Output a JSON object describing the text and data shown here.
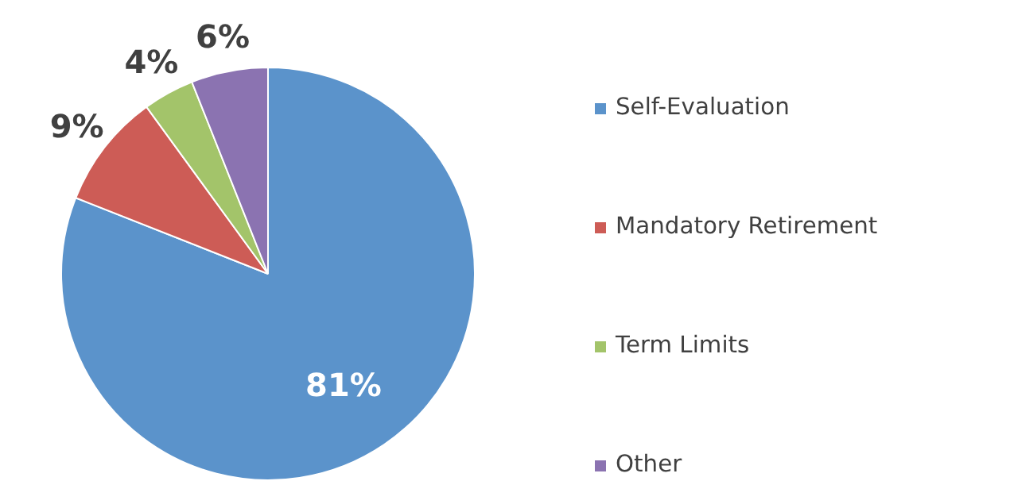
{
  "chart_data": {
    "type": "pie",
    "categories": [
      "Self-Evaluation",
      "Mandatory Retirement",
      "Term Limits",
      "Other"
    ],
    "values": [
      81,
      9,
      4,
      6
    ],
    "colors": [
      "#5b93cb",
      "#cd5c56",
      "#a3c46a",
      "#8b73b1"
    ],
    "value_labels": [
      "81%",
      "9%",
      "4%",
      "6%"
    ],
    "legend": "right"
  }
}
